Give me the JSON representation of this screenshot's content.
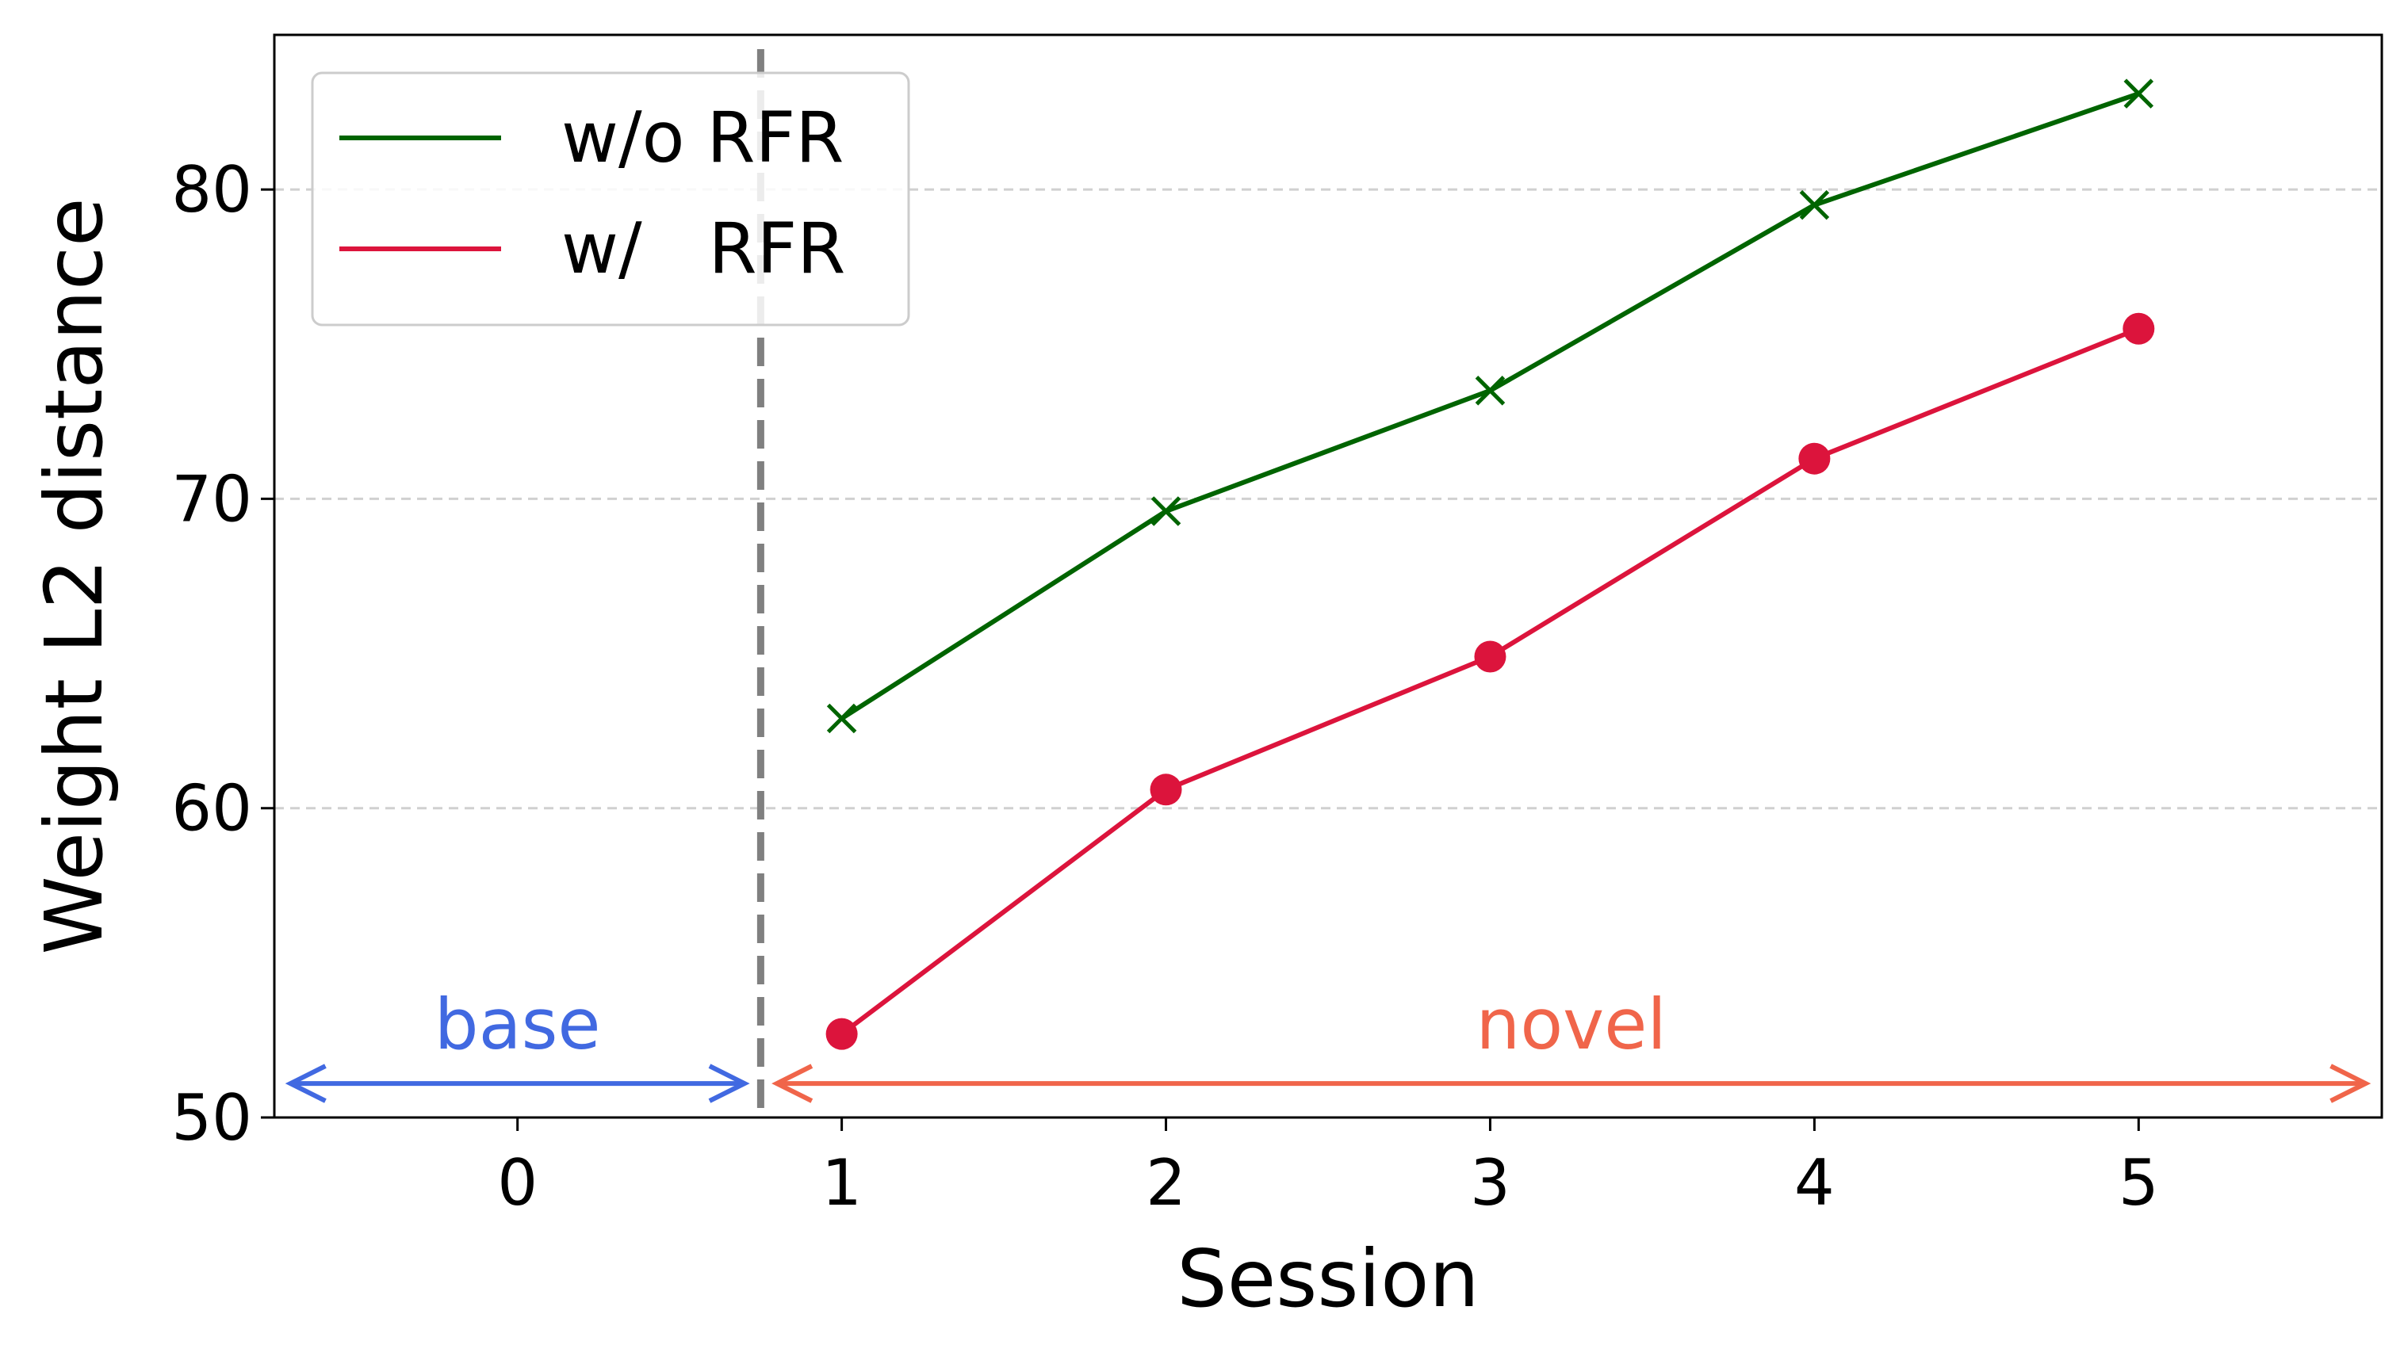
{
  "chart_data": {
    "type": "line",
    "xlabel": "Session",
    "ylabel": "Weight L2 distance",
    "xlim": [
      -0.75,
      5.75
    ],
    "ylim": [
      50,
      85
    ],
    "xticks": [
      0,
      1,
      2,
      3,
      4,
      5
    ],
    "xtick_labels": [
      "0",
      "1",
      "2",
      "3",
      "4",
      "5"
    ],
    "yticks": [
      50,
      60,
      70,
      80
    ],
    "ytick_labels": [
      "50",
      "60",
      "70",
      "80"
    ],
    "grid": "horizontal dashed",
    "legend_position": "top-left",
    "divider_x": 0.75,
    "series": [
      {
        "name": "w/o RFR",
        "marker": "x",
        "color": "#006400",
        "x": [
          1,
          2,
          3,
          4,
          5
        ],
        "y": [
          62.9,
          69.6,
          73.5,
          79.5,
          83.1
        ]
      },
      {
        "name": "w/   RFR",
        "marker": "circle",
        "color": "#dc143c",
        "x": [
          1,
          2,
          3,
          4,
          5
        ],
        "y": [
          52.7,
          60.6,
          64.9,
          71.3,
          75.5
        ]
      }
    ],
    "annotations": [
      {
        "text": "base",
        "color": "#4169e1",
        "x_from": -0.7,
        "x_to": 0.7,
        "y": 51.1,
        "label_x": 0,
        "label_y": 53
      },
      {
        "text": "novel",
        "color": "#f0654a",
        "x_from": 0.8,
        "x_to": 5.7,
        "y": 51.1,
        "label_x": 3.25,
        "label_y": 53
      }
    ]
  }
}
